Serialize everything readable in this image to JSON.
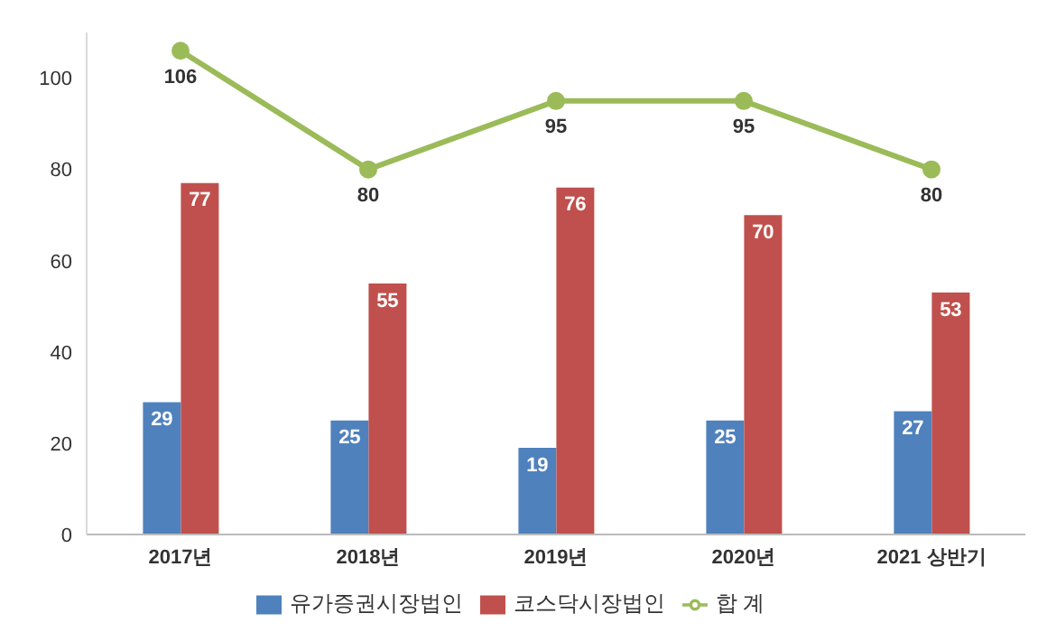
{
  "chart_data": {
    "type": "bar",
    "categories": [
      "2017년",
      "2018년",
      "2019년",
      "2020년",
      "2021 상반기"
    ],
    "series": [
      {
        "name": "유가증권시장법인",
        "color": "#4f81bd",
        "values": [
          29,
          25,
          19,
          25,
          27
        ]
      },
      {
        "name": "코스닥시장법인",
        "color": "#c0504d",
        "values": [
          77,
          55,
          76,
          70,
          53
        ]
      },
      {
        "name": "합 계",
        "type": "line",
        "color": "#9bbb59",
        "values": [
          106,
          80,
          95,
          95,
          80
        ]
      }
    ],
    "ylim": [
      0,
      110
    ],
    "yticks": [
      0,
      20,
      40,
      60,
      80,
      100
    ],
    "grid": false,
    "legend": "bottom",
    "data_labels": true,
    "marker": "circle"
  }
}
